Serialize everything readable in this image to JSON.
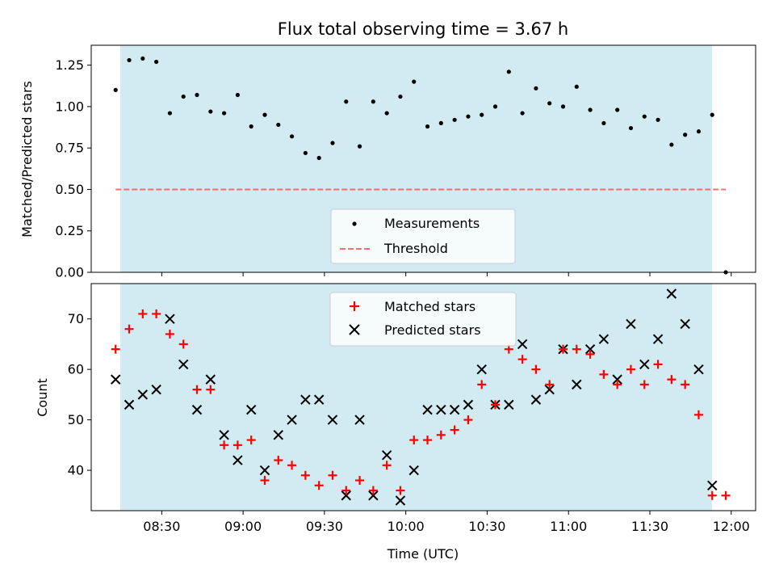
{
  "chart_data": [
    {
      "type": "scatter",
      "title": "Flux total observing time = 3.67 h",
      "xlabel": "",
      "ylabel": "Matched/Predicted stars",
      "ylim": [
        0,
        1.37
      ],
      "yticks": [
        "0.00",
        "0.25",
        "0.50",
        "0.75",
        "1.00",
        "1.25"
      ],
      "shaded_span": {
        "from": "08:13",
        "to": "11:53",
        "color": "#add8e6"
      },
      "legend": {
        "placement": "lower-center",
        "entries": [
          "Measurements",
          "Threshold"
        ]
      },
      "series": [
        {
          "name": "Measurements",
          "marker": "dot",
          "color": "#000000",
          "x": [
            "08:13",
            "08:18",
            "08:23",
            "08:28",
            "08:33",
            "08:38",
            "08:43",
            "08:48",
            "08:53",
            "08:58",
            "09:03",
            "09:08",
            "09:13",
            "09:18",
            "09:23",
            "09:28",
            "09:33",
            "09:38",
            "09:43",
            "09:48",
            "09:53",
            "09:58",
            "10:03",
            "10:08",
            "10:13",
            "10:18",
            "10:23",
            "10:28",
            "10:33",
            "10:38",
            "10:43",
            "10:48",
            "10:53",
            "10:58",
            "11:03",
            "11:08",
            "11:13",
            "11:18",
            "11:23",
            "11:28",
            "11:33",
            "11:38",
            "11:43",
            "11:48",
            "11:53",
            "11:58"
          ],
          "values": [
            1.1,
            1.28,
            1.29,
            1.27,
            0.96,
            1.06,
            1.07,
            0.97,
            0.96,
            1.07,
            0.88,
            0.95,
            0.89,
            0.82,
            0.72,
            0.69,
            0.78,
            1.03,
            0.76,
            1.03,
            0.96,
            1.06,
            1.15,
            0.88,
            0.9,
            0.92,
            0.94,
            0.95,
            1.0,
            1.21,
            0.96,
            1.11,
            1.02,
            1.0,
            1.12,
            0.98,
            0.9,
            0.98,
            0.87,
            0.94,
            0.92,
            0.77,
            0.83,
            0.85,
            0.95,
            0.0
          ]
        },
        {
          "name": "Threshold",
          "style": "dashed-line",
          "color": "#ff5555",
          "x": [
            "08:13",
            "11:58"
          ],
          "values": [
            0.5,
            0.5
          ]
        }
      ]
    },
    {
      "type": "scatter",
      "title": "",
      "xlabel": "Time (UTC)",
      "ylabel": "Count",
      "ylim": [
        32,
        77
      ],
      "yticks": [
        "40",
        "50",
        "60",
        "70"
      ],
      "xticks": [
        "08:30",
        "09:00",
        "09:30",
        "10:00",
        "10:30",
        "11:00",
        "11:30",
        "12:00"
      ],
      "xlim": [
        "08:04",
        "12:09"
      ],
      "shaded_span": {
        "from": "08:13",
        "to": "11:53",
        "color": "#add8e6"
      },
      "legend": {
        "placement": "top-center",
        "entries": [
          "Matched stars",
          "Predicted stars"
        ]
      },
      "series": [
        {
          "name": "Matched stars",
          "marker": "plus",
          "color": "#ff0000",
          "x": [
            "08:13",
            "08:18",
            "08:23",
            "08:28",
            "08:33",
            "08:38",
            "08:43",
            "08:48",
            "08:53",
            "08:58",
            "09:03",
            "09:08",
            "09:13",
            "09:18",
            "09:23",
            "09:28",
            "09:33",
            "09:38",
            "09:43",
            "09:48",
            "09:53",
            "09:58",
            "10:03",
            "10:08",
            "10:13",
            "10:18",
            "10:23",
            "10:28",
            "10:33",
            "10:38",
            "10:43",
            "10:48",
            "10:53",
            "10:58",
            "11:03",
            "11:08",
            "11:13",
            "11:18",
            "11:23",
            "11:28",
            "11:33",
            "11:38",
            "11:43",
            "11:48",
            "11:53",
            "11:58"
          ],
          "values": [
            64,
            68,
            71,
            71,
            67,
            65,
            56,
            56,
            45,
            45,
            46,
            38,
            42,
            41,
            39,
            37,
            39,
            36,
            38,
            36,
            41,
            36,
            46,
            46,
            47,
            48,
            50,
            57,
            53,
            64,
            62,
            60,
            57,
            64,
            64,
            63,
            59,
            57,
            60,
            57,
            61,
            58,
            57,
            51,
            35,
            35
          ]
        },
        {
          "name": "Predicted stars",
          "marker": "x",
          "color": "#000000",
          "x": [
            "08:13",
            "08:18",
            "08:23",
            "08:28",
            "08:33",
            "08:38",
            "08:43",
            "08:48",
            "08:53",
            "08:58",
            "09:03",
            "09:08",
            "09:13",
            "09:18",
            "09:23",
            "09:28",
            "09:33",
            "09:38",
            "09:43",
            "09:48",
            "09:53",
            "09:58",
            "10:03",
            "10:08",
            "10:13",
            "10:18",
            "10:23",
            "10:28",
            "10:33",
            "10:38",
            "10:43",
            "10:48",
            "10:53",
            "10:58",
            "11:03",
            "11:08",
            "11:13",
            "11:18",
            "11:23",
            "11:28",
            "11:33",
            "11:38",
            "11:43",
            "11:48",
            "11:53"
          ],
          "values": [
            58,
            53,
            55,
            56,
            70,
            61,
            52,
            58,
            47,
            42,
            52,
            40,
            47,
            50,
            54,
            54,
            50,
            35,
            50,
            35,
            43,
            34,
            40,
            52,
            52,
            52,
            53,
            60,
            53,
            53,
            65,
            54,
            56,
            64,
            57,
            64,
            66,
            58,
            69,
            61,
            66,
            75,
            69,
            60,
            37
          ]
        }
      ]
    }
  ]
}
